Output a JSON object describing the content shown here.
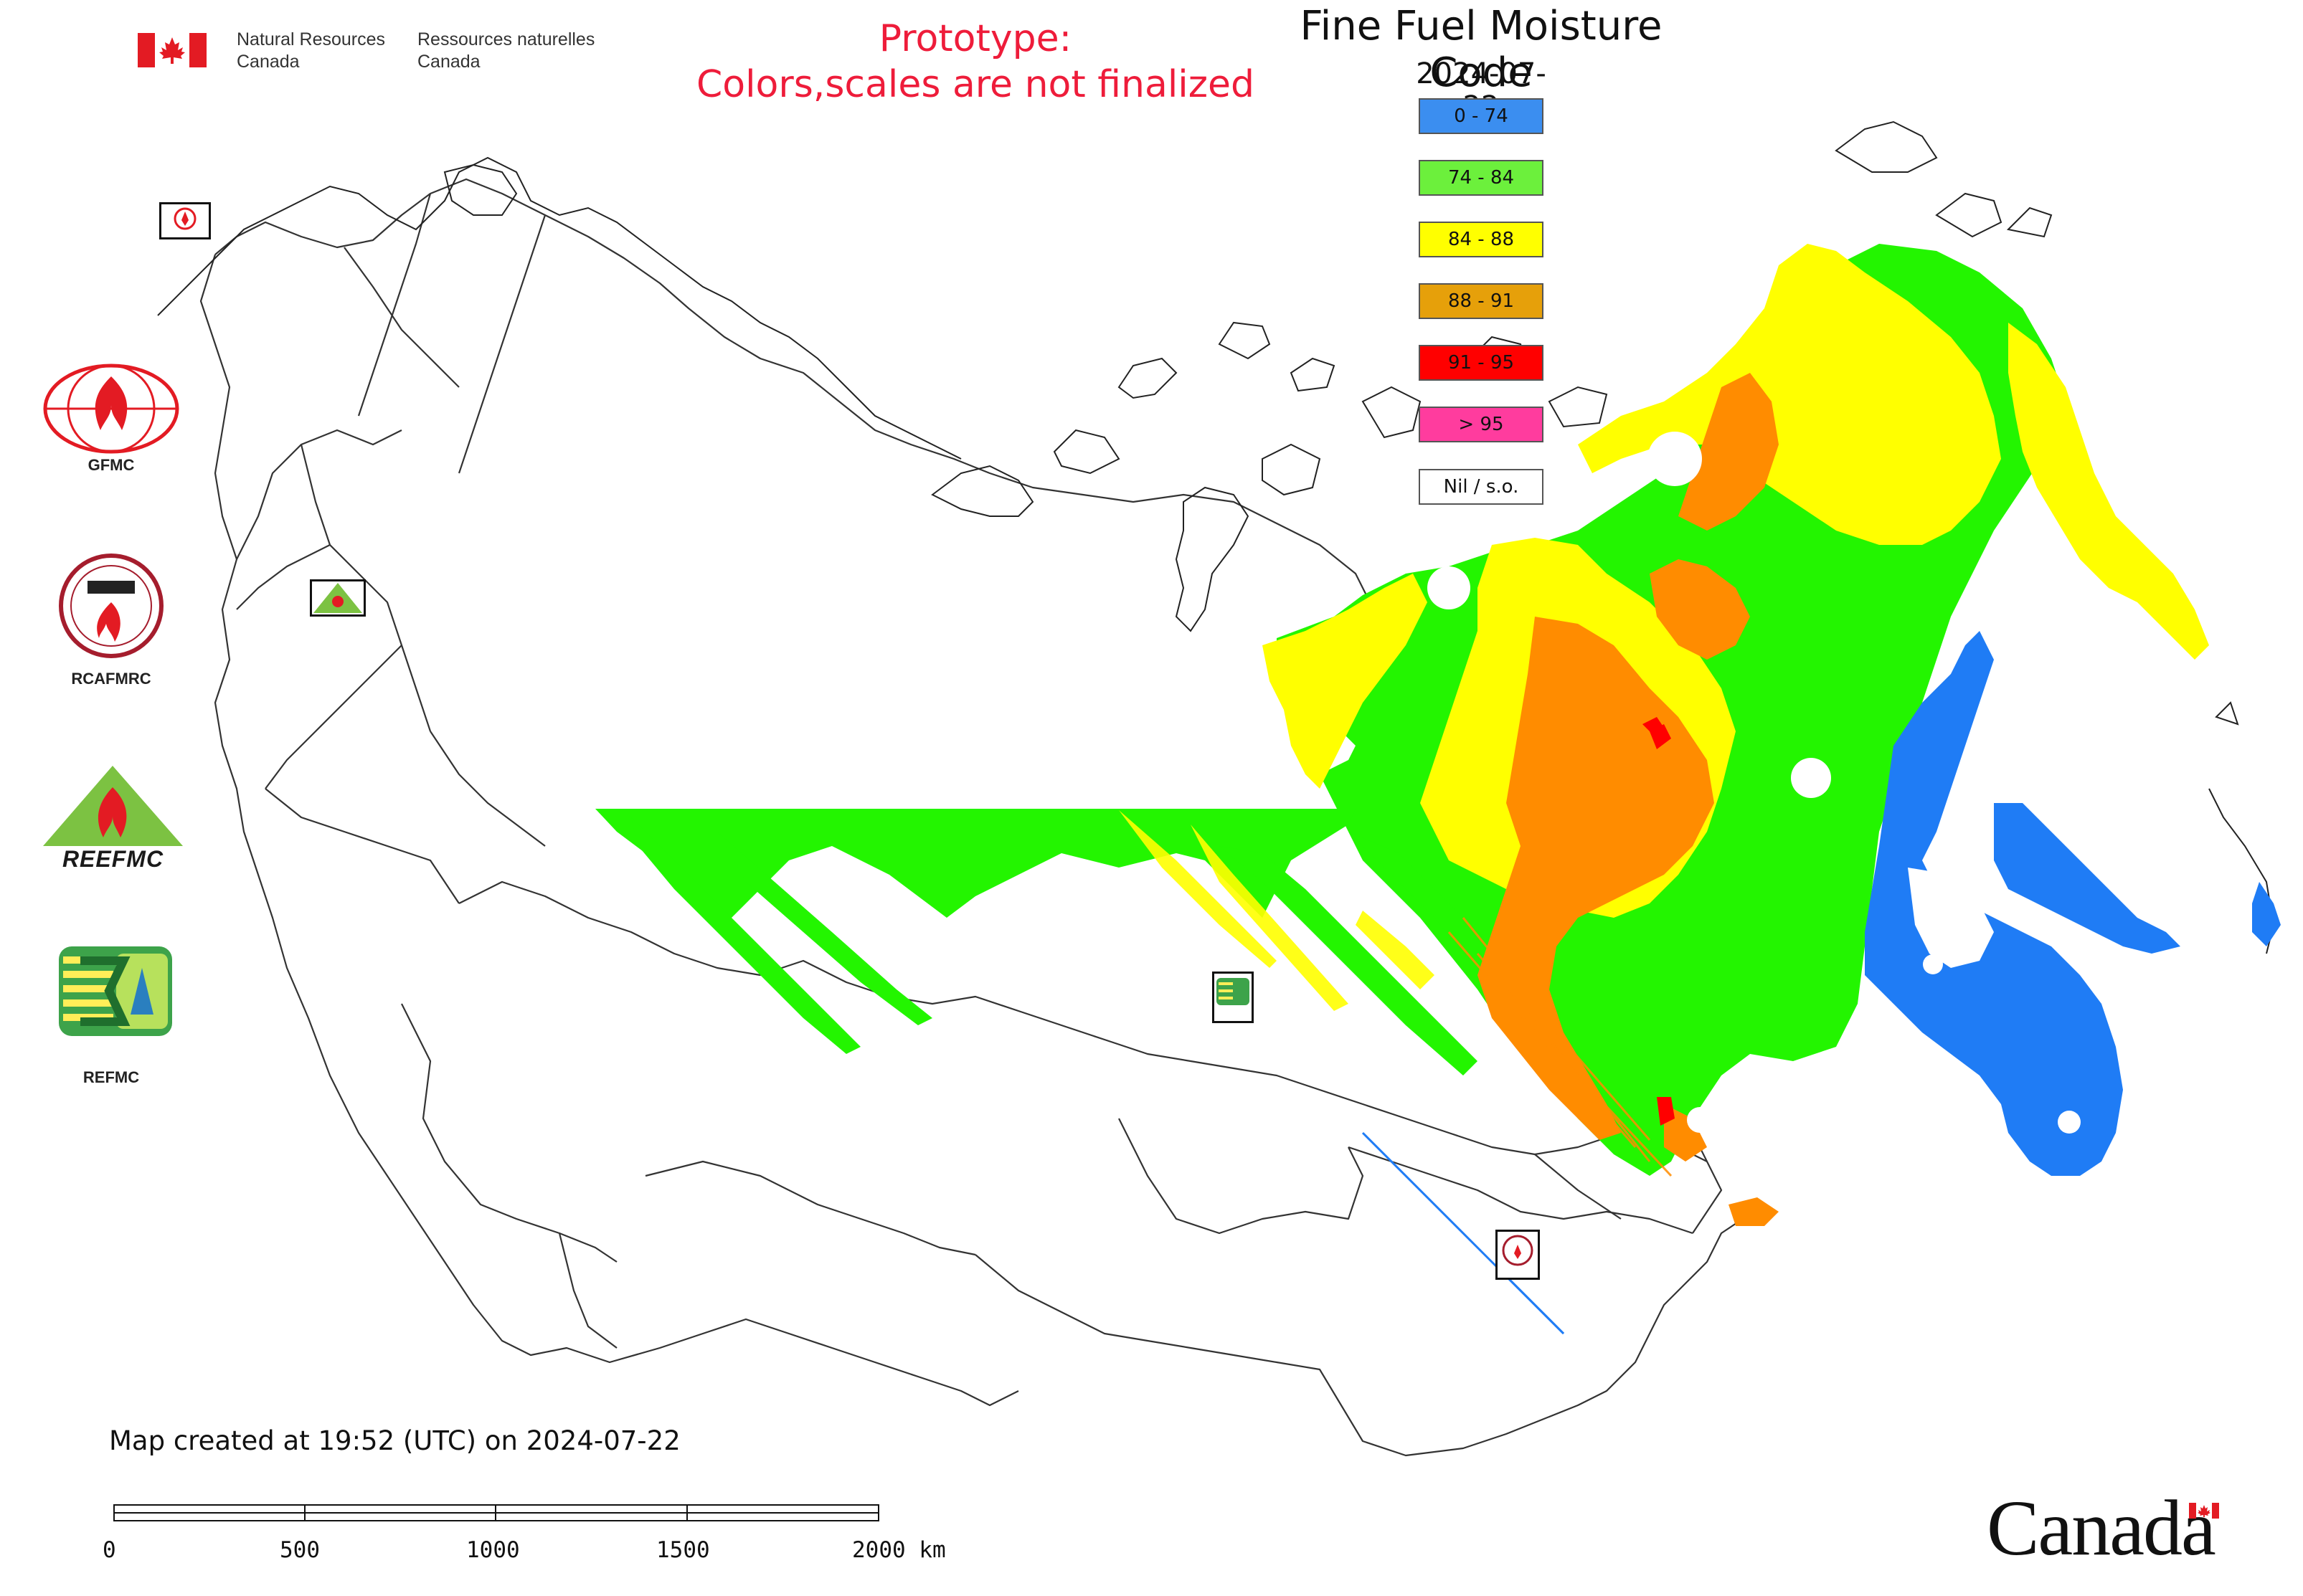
{
  "header": {
    "dept_en_line1": "Natural Resources",
    "dept_en_line2": "Canada",
    "dept_fr_line1": "Ressources naturelles",
    "dept_fr_line2": "Canada",
    "prototype_line1": "Prototype:",
    "prototype_line2": "Colors,scales are not finalized"
  },
  "map": {
    "title": "Fine Fuel Moisture Code",
    "date": "2024-07-22",
    "legend": [
      {
        "label": "0 - 74",
        "color": "#3b8ef0"
      },
      {
        "label": "74 - 84",
        "color": "#6cf03c"
      },
      {
        "label": "84 - 88",
        "color": "#ffff00"
      },
      {
        "label": "88 - 91",
        "color": "#e6a00a"
      },
      {
        "label": "91 - 95",
        "color": "#ff0000"
      },
      {
        "label": "> 95",
        "color": "#ff3c9e"
      },
      {
        "label": "Nil / s.o.",
        "color": "#ffffff"
      }
    ],
    "colors": {
      "blue": "#1f7cf5",
      "green": "#23f500",
      "yellow": "#ffff00",
      "orange": "#ff8c00",
      "red": "#ff0000",
      "border": "#333333"
    }
  },
  "side_logos": [
    {
      "label": "GFMC"
    },
    {
      "label": "RCAFMRC"
    },
    {
      "label": "REEFMC",
      "wordmark": "REEFMC"
    },
    {
      "label": "REFMC"
    }
  ],
  "footer": {
    "created": "Map created at 19:52 (UTC) on 2024-07-22",
    "scale_ticks": [
      "0",
      "500",
      "1000",
      "1500",
      "2000 km"
    ],
    "wordmark": "Canada"
  }
}
